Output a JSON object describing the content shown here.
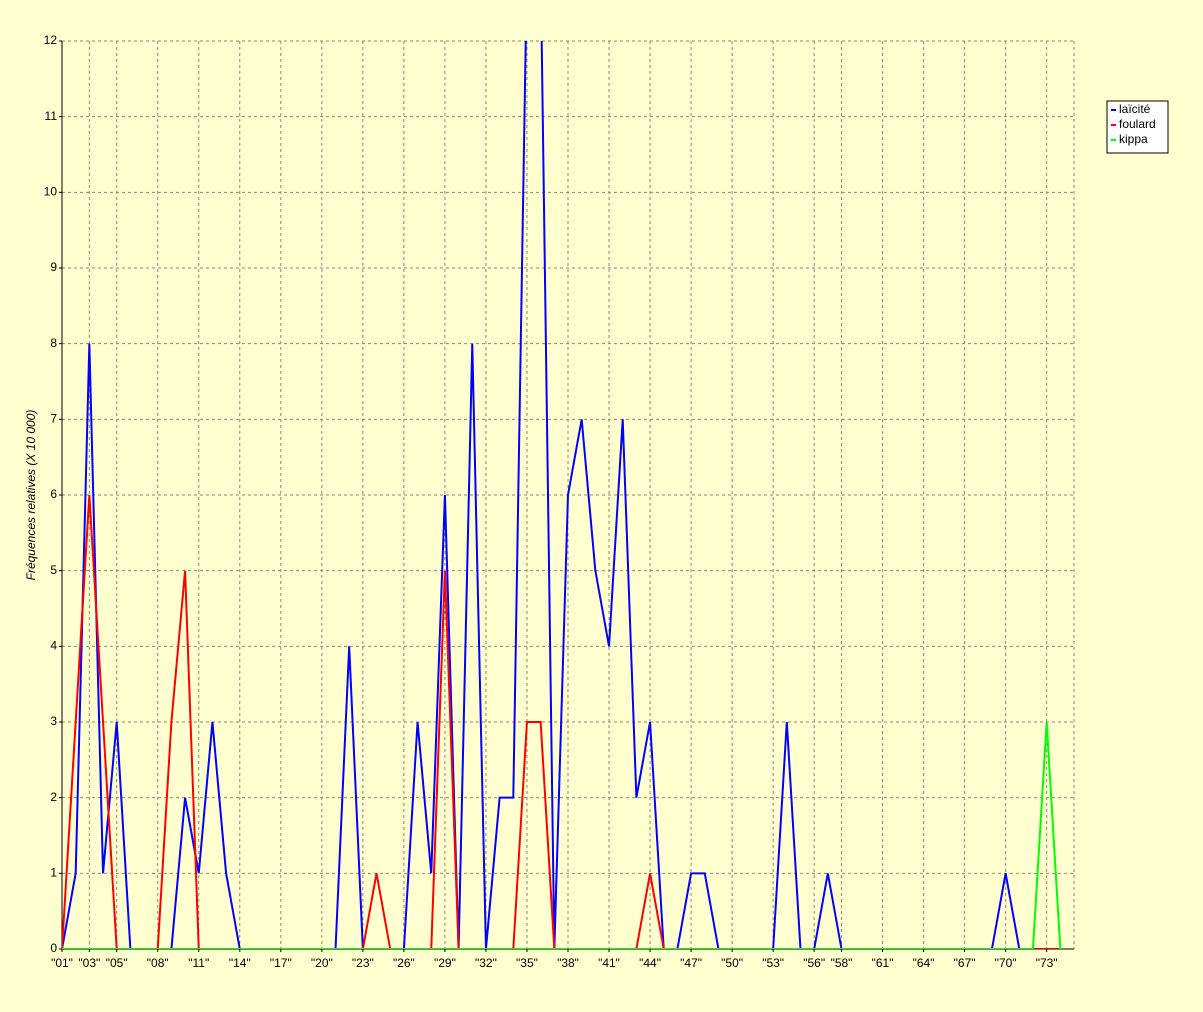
{
  "chart_data": {
    "type": "line",
    "y_label": "Fréquences relatives (X 10 000)",
    "categories": [
      "\"01\"",
      null,
      "\"03\"",
      null,
      "\"05\"",
      null,
      null,
      "\"08\"",
      null,
      null,
      "\"11\"",
      null,
      null,
      "\"14\"",
      null,
      null,
      "\"17\"",
      null,
      null,
      "\"20\"",
      null,
      null,
      "\"23\"",
      null,
      null,
      "\"26\"",
      null,
      null,
      "\"29\"",
      null,
      null,
      "\"32\"",
      null,
      null,
      "\"35\"",
      null,
      null,
      "\"38\"",
      null,
      null,
      "\"41\"",
      null,
      null,
      "\"44\"",
      null,
      null,
      "\"47\"",
      null,
      null,
      "\"50\"",
      null,
      null,
      "\"53\"",
      null,
      null,
      "\"56\"",
      null,
      "\"58\"",
      null,
      null,
      "\"61\"",
      null,
      null,
      "\"64\"",
      null,
      null,
      "\"67\"",
      null,
      null,
      "\"70\"",
      null,
      null,
      "\"73\"",
      null
    ],
    "series": [
      {
        "name": "laïcité",
        "color": "#0000ff",
        "values": [
          0,
          1,
          8,
          1,
          3,
          0,
          0,
          0,
          0,
          2,
          1,
          3,
          1,
          0,
          0,
          0,
          0,
          0,
          0,
          0,
          0,
          4,
          0,
          0,
          0,
          0,
          3,
          1,
          6,
          0,
          8,
          0,
          2,
          2,
          13,
          13,
          0,
          6,
          7,
          5,
          4,
          7,
          2,
          3,
          0,
          0,
          1,
          1,
          0,
          0,
          0,
          0,
          0,
          3,
          0,
          0,
          1,
          0,
          0,
          0,
          0,
          0,
          0,
          0,
          0,
          0,
          0,
          0,
          0,
          1,
          0,
          0,
          0,
          0
        ]
      },
      {
        "name": "foulard",
        "color": "#ff0000",
        "values": [
          0,
          3,
          6,
          3,
          0,
          0,
          0,
          0,
          3,
          5,
          0,
          0,
          0,
          0,
          0,
          0,
          0,
          0,
          0,
          0,
          0,
          0,
          0,
          1,
          0,
          0,
          0,
          0,
          5,
          0,
          0,
          0,
          0,
          0,
          3,
          3,
          0,
          0,
          0,
          0,
          0,
          0,
          0,
          1,
          0,
          0,
          0,
          0,
          0,
          0,
          0,
          0,
          0,
          0,
          0,
          0,
          0,
          0,
          0,
          0,
          0,
          0,
          0,
          0,
          0,
          0,
          0,
          0,
          0,
          0,
          0,
          0,
          0,
          0
        ]
      },
      {
        "name": "kippa",
        "color": "#00ff00",
        "values": [
          0,
          0,
          0,
          0,
          0,
          0,
          0,
          0,
          0,
          0,
          0,
          0,
          0,
          0,
          0,
          0,
          0,
          0,
          0,
          0,
          0,
          0,
          0,
          0,
          0,
          0,
          0,
          0,
          0,
          0,
          0,
          0,
          0,
          0,
          0,
          0,
          0,
          0,
          0,
          0,
          0,
          0,
          0,
          0,
          0,
          0,
          0,
          0,
          0,
          0,
          0,
          0,
          0,
          0,
          0,
          0,
          0,
          0,
          0,
          0,
          0,
          0,
          0,
          0,
          0,
          0,
          0,
          0,
          0,
          0,
          0,
          0,
          3,
          0
        ]
      }
    ],
    "ylim": [
      0,
      12
    ],
    "yticks": [
      0,
      1,
      2,
      3,
      4,
      5,
      6,
      7,
      8,
      9,
      10,
      11,
      12
    ],
    "grid": true,
    "legend": "right"
  }
}
